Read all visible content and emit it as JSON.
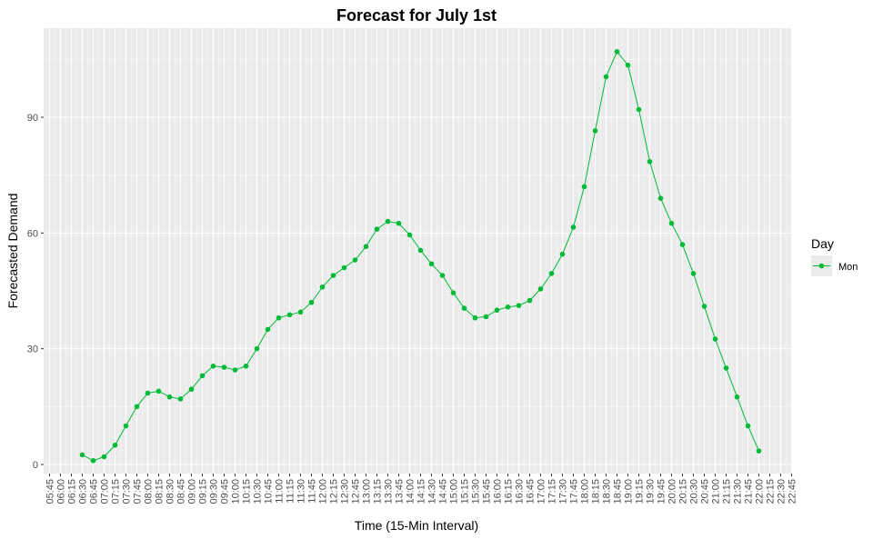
{
  "chart_data": {
    "type": "line",
    "title": "Forecast for July 1st",
    "xlabel": "Time (15-Min Interval)",
    "ylabel": "Forecasted Demand",
    "x_ticks": [
      "05:45",
      "06:00",
      "06:15",
      "06:30",
      "06:45",
      "07:00",
      "07:15",
      "07:30",
      "07:45",
      "08:00",
      "08:15",
      "08:30",
      "08:45",
      "09:00",
      "09:15",
      "09:30",
      "09:45",
      "10:00",
      "10:15",
      "10:30",
      "10:45",
      "11:00",
      "11:15",
      "11:30",
      "11:45",
      "12:00",
      "12:15",
      "12:30",
      "12:45",
      "13:00",
      "13:15",
      "13:30",
      "13:45",
      "14:00",
      "14:15",
      "14:30",
      "14:45",
      "15:00",
      "15:15",
      "15:30",
      "15:45",
      "16:00",
      "16:15",
      "16:30",
      "16:45",
      "17:00",
      "17:15",
      "17:30",
      "17:45",
      "18:00",
      "18:15",
      "18:30",
      "18:45",
      "19:00",
      "19:15",
      "19:30",
      "19:45",
      "20:00",
      "20:15",
      "20:30",
      "20:45",
      "21:00",
      "21:15",
      "21:30",
      "21:45",
      "22:00",
      "22:15",
      "22:30",
      "22:45"
    ],
    "y_ticks": [
      0,
      30,
      60,
      90
    ],
    "ylim": [
      -2.5,
      113
    ],
    "grid": true,
    "legend": {
      "title": "Day",
      "position": "right"
    },
    "series": [
      {
        "name": "Mon",
        "color": "#00ba38",
        "x": [
          "06:30",
          "06:45",
          "07:00",
          "07:15",
          "07:30",
          "07:45",
          "08:00",
          "08:15",
          "08:30",
          "08:45",
          "09:00",
          "09:15",
          "09:30",
          "09:45",
          "10:00",
          "10:15",
          "10:30",
          "10:45",
          "11:00",
          "11:15",
          "11:30",
          "11:45",
          "12:00",
          "12:15",
          "12:30",
          "12:45",
          "13:00",
          "13:15",
          "13:30",
          "13:45",
          "14:00",
          "14:15",
          "14:30",
          "14:45",
          "15:00",
          "15:15",
          "15:30",
          "15:45",
          "16:00",
          "16:15",
          "16:30",
          "16:45",
          "17:00",
          "17:15",
          "17:30",
          "17:45",
          "18:00",
          "18:15",
          "18:30",
          "18:45",
          "19:00",
          "19:15",
          "19:30",
          "19:45",
          "20:00",
          "20:15",
          "20:30",
          "20:45",
          "21:00",
          "21:15",
          "21:30",
          "21:45",
          "22:00"
        ],
        "values": [
          2.5,
          1.0,
          2.0,
          5.0,
          10.0,
          15.0,
          18.5,
          19.0,
          17.5,
          17.0,
          19.5,
          23.0,
          25.5,
          25.2,
          24.5,
          25.5,
          30.0,
          35.0,
          38.0,
          38.8,
          39.5,
          42.0,
          46.0,
          49.0,
          51.0,
          53.0,
          56.5,
          61.0,
          63.0,
          62.5,
          59.5,
          55.5,
          52.0,
          49.0,
          44.5,
          40.5,
          38.0,
          38.3,
          40.0,
          40.8,
          41.2,
          42.5,
          45.5,
          49.5,
          54.5,
          61.5,
          72.0,
          86.5,
          100.5,
          107.0,
          103.5,
          92.0,
          78.5,
          69.0,
          62.5,
          57.0,
          49.5,
          41.0,
          32.5,
          25.0,
          17.5,
          10.0,
          3.5
        ]
      }
    ]
  }
}
